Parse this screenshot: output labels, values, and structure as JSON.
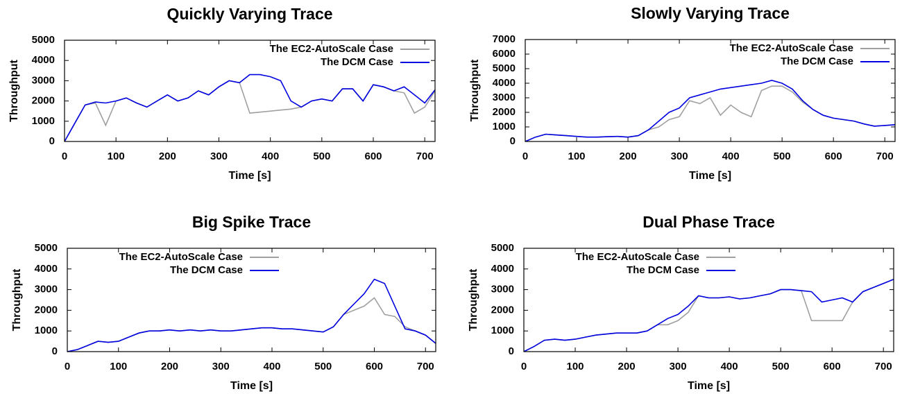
{
  "chart_data": [
    {
      "type": "line",
      "title": "Quickly Varying Trace",
      "xlabel": "Time [s]",
      "ylabel": "Throughput",
      "x": [
        0,
        20,
        40,
        60,
        80,
        100,
        120,
        140,
        160,
        180,
        200,
        220,
        240,
        260,
        280,
        300,
        320,
        340,
        360,
        380,
        400,
        420,
        440,
        460,
        480,
        500,
        520,
        540,
        560,
        580,
        600,
        620,
        640,
        660,
        680,
        700,
        720
      ],
      "series": [
        {
          "name": "The EC2-AutoScale Case",
          "color": "#a0a0a0",
          "values": [
            0,
            900,
            1800,
            1900,
            800,
            2000,
            2150,
            1900,
            1700,
            2000,
            2300,
            2000,
            2150,
            2500,
            2300,
            2700,
            3000,
            2900,
            1400,
            1450,
            1500,
            1550,
            1600,
            1700,
            2000,
            2100,
            2000,
            2600,
            2600,
            2000,
            2800,
            2700,
            2500,
            2400,
            1400,
            1700,
            2500
          ]
        },
        {
          "name": "The DCM Case",
          "color": "#0000e0",
          "values": [
            0,
            900,
            1800,
            1950,
            1900,
            2000,
            2150,
            1900,
            1700,
            2000,
            2300,
            2000,
            2150,
            2500,
            2300,
            2700,
            3000,
            2900,
            3300,
            3300,
            3200,
            3000,
            2000,
            1700,
            2000,
            2100,
            2000,
            2600,
            2600,
            2000,
            2800,
            2700,
            2500,
            2700,
            2300,
            1900,
            2550
          ]
        }
      ],
      "xlim": [
        0,
        720
      ],
      "ylim": [
        0,
        5000
      ],
      "xticks": [
        0,
        100,
        200,
        300,
        400,
        500,
        600,
        700
      ],
      "yticks": [
        0,
        1000,
        2000,
        3000,
        4000,
        5000
      ],
      "grid": false,
      "legend": "upper right"
    },
    {
      "type": "line",
      "title": "Slowly Varying Trace",
      "xlabel": "Time [s]",
      "ylabel": "Throughput",
      "x": [
        0,
        20,
        40,
        60,
        80,
        100,
        120,
        140,
        160,
        180,
        200,
        220,
        240,
        260,
        280,
        300,
        320,
        340,
        360,
        380,
        400,
        420,
        440,
        460,
        480,
        500,
        520,
        540,
        560,
        580,
        600,
        620,
        640,
        660,
        680,
        700,
        720
      ],
      "series": [
        {
          "name": "The EC2-AutoScale Case",
          "color": "#a0a0a0",
          "values": [
            0,
            300,
            500,
            450,
            400,
            350,
            300,
            300,
            330,
            350,
            300,
            400,
            800,
            1000,
            1500,
            1700,
            2800,
            2600,
            3000,
            1800,
            2500,
            2000,
            1700,
            3500,
            3800,
            3800,
            3400,
            2700,
            2200,
            1800,
            1600,
            1500,
            1400,
            1200,
            1050,
            1100,
            1150
          ]
        },
        {
          "name": "The DCM Case",
          "color": "#0000e0",
          "values": [
            0,
            300,
            500,
            450,
            400,
            350,
            300,
            300,
            330,
            350,
            300,
            400,
            800,
            1400,
            2000,
            2300,
            3000,
            3200,
            3400,
            3600,
            3700,
            3800,
            3900,
            4000,
            4200,
            4000,
            3600,
            2800,
            2200,
            1800,
            1600,
            1500,
            1400,
            1200,
            1050,
            1100,
            1150
          ]
        }
      ],
      "xlim": [
        0,
        720
      ],
      "ylim": [
        0,
        7000
      ],
      "xticks": [
        0,
        100,
        200,
        300,
        400,
        500,
        600,
        700
      ],
      "yticks": [
        0,
        1000,
        2000,
        3000,
        4000,
        5000,
        6000,
        7000
      ],
      "grid": false,
      "legend": "upper right"
    },
    {
      "type": "line",
      "title": "Big Spike Trace",
      "xlabel": "Time [s]",
      "ylabel": "Throughput",
      "x": [
        0,
        20,
        40,
        60,
        80,
        100,
        120,
        140,
        160,
        180,
        200,
        220,
        240,
        260,
        280,
        300,
        320,
        340,
        360,
        380,
        400,
        420,
        440,
        460,
        480,
        500,
        520,
        540,
        560,
        580,
        600,
        620,
        640,
        660,
        680,
        700,
        720
      ],
      "series": [
        {
          "name": "The EC2-AutoScale Case",
          "color": "#a0a0a0",
          "values": [
            0,
            100,
            300,
            500,
            450,
            500,
            700,
            900,
            1000,
            1000,
            1050,
            1000,
            1050,
            1000,
            1050,
            1000,
            1000,
            1050,
            1100,
            1150,
            1150,
            1100,
            1100,
            1050,
            1000,
            950,
            1200,
            1800,
            2000,
            2200,
            2600,
            1800,
            1700,
            1200,
            1000,
            800,
            400
          ]
        },
        {
          "name": "The DCM Case",
          "color": "#0000e0",
          "values": [
            0,
            100,
            300,
            500,
            450,
            500,
            700,
            900,
            1000,
            1000,
            1050,
            1000,
            1050,
            1000,
            1050,
            1000,
            1000,
            1050,
            1100,
            1150,
            1150,
            1100,
            1100,
            1050,
            1000,
            950,
            1200,
            1800,
            2300,
            2800,
            3500,
            3300,
            2200,
            1100,
            1000,
            800,
            400
          ]
        }
      ],
      "xlim": [
        0,
        720
      ],
      "ylim": [
        0,
        5000
      ],
      "xticks": [
        0,
        100,
        200,
        300,
        400,
        500,
        600,
        700
      ],
      "yticks": [
        0,
        1000,
        2000,
        3000,
        4000,
        5000
      ],
      "grid": false,
      "legend": "upper left"
    },
    {
      "type": "line",
      "title": "Dual Phase Trace",
      "xlabel": "Time [s]",
      "ylabel": "Throughput",
      "x": [
        0,
        20,
        40,
        60,
        80,
        100,
        120,
        140,
        160,
        180,
        200,
        220,
        240,
        260,
        280,
        300,
        320,
        340,
        360,
        380,
        400,
        420,
        440,
        460,
        480,
        500,
        520,
        540,
        560,
        580,
        600,
        620,
        640,
        660,
        680,
        700,
        720
      ],
      "series": [
        {
          "name": "The EC2-AutoScale Case",
          "color": "#a0a0a0",
          "values": [
            0,
            250,
            550,
            600,
            550,
            600,
            700,
            800,
            850,
            900,
            900,
            900,
            1000,
            1300,
            1300,
            1500,
            1900,
            2700,
            2600,
            2600,
            2650,
            2550,
            2600,
            2700,
            2800,
            3000,
            3000,
            2950,
            1500,
            1500,
            1500,
            1500,
            2400,
            2900,
            3100,
            3300,
            3500
          ]
        },
        {
          "name": "The DCM Case",
          "color": "#0000e0",
          "values": [
            0,
            250,
            550,
            600,
            550,
            600,
            700,
            800,
            850,
            900,
            900,
            900,
            1000,
            1300,
            1600,
            1800,
            2200,
            2700,
            2600,
            2600,
            2650,
            2550,
            2600,
            2700,
            2800,
            3000,
            3000,
            2950,
            2900,
            2400,
            2500,
            2600,
            2400,
            2900,
            3100,
            3300,
            3500
          ]
        }
      ],
      "xlim": [
        0,
        720
      ],
      "ylim": [
        0,
        5000
      ],
      "xticks": [
        0,
        100,
        200,
        300,
        400,
        500,
        600,
        700
      ],
      "yticks": [
        0,
        1000,
        2000,
        3000,
        4000,
        5000
      ],
      "grid": false,
      "legend": "upper left"
    }
  ]
}
